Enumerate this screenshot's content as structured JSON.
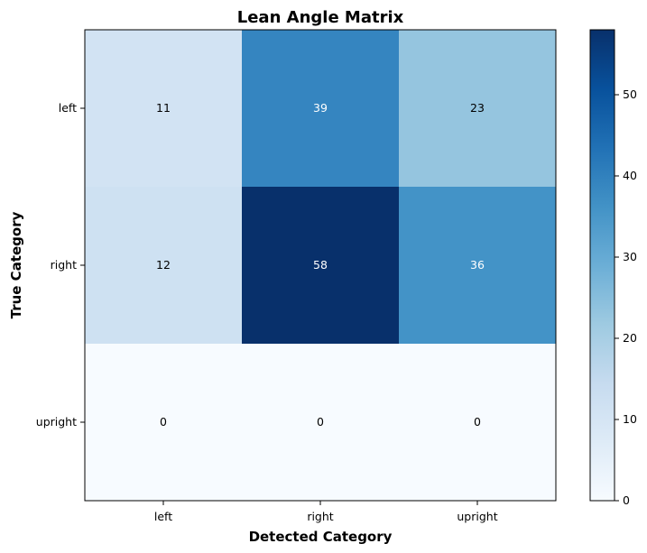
{
  "chart_data": {
    "type": "heatmap",
    "title": "Lean Angle Matrix",
    "xlabel": "Detected Category",
    "ylabel": "True Category",
    "x_categories": [
      "left",
      "right",
      "upright"
    ],
    "y_categories": [
      "left",
      "right",
      "upright"
    ],
    "values": [
      [
        11,
        39,
        23
      ],
      [
        12,
        58,
        36
      ],
      [
        0,
        0,
        0
      ]
    ],
    "colormap": "Blues",
    "colorbar": {
      "min": 0,
      "max": 58,
      "ticks": [
        0,
        10,
        20,
        30,
        40,
        50
      ]
    },
    "colors": {
      "low": "#f7fbff",
      "high": "#08306b",
      "text_dark": "#000000",
      "text_light": "#ffffff"
    }
  }
}
